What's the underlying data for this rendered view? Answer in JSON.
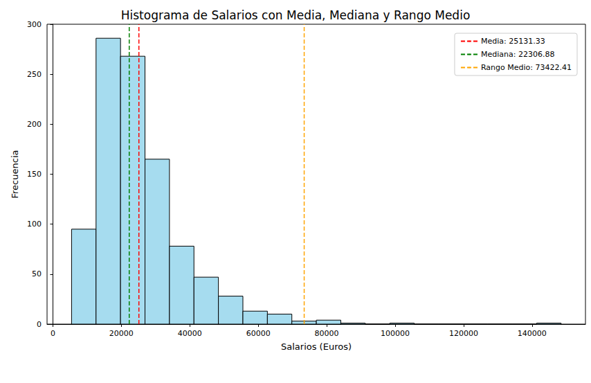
{
  "chart_data": {
    "type": "histogram",
    "title": "Histograma de Salarios con Media, Mediana y Rango Medio",
    "x_label": "Salarios (Euros)",
    "y_label": "Frecuencia",
    "bins": [
      5460,
      12611,
      19762,
      26913,
      34064,
      41215,
      48366,
      55517,
      62668,
      69819,
      76970,
      84121,
      91272,
      98423,
      105574,
      112725,
      119876,
      127027,
      134178,
      141329,
      148480
    ],
    "counts": [
      95,
      286,
      268,
      165,
      78,
      47,
      28,
      13,
      10,
      3,
      4,
      1,
      0,
      1,
      0,
      0,
      0,
      0,
      0,
      1
    ],
    "color": "#a6dcef",
    "lines": [
      {
        "name": "Media: 25131.33",
        "value": 25131.33,
        "color": "#ff0000",
        "line_style": "dashed"
      },
      {
        "name": "Mediana: 22306.88",
        "value": 22306.88,
        "color": "#008000",
        "line_style": "dashed"
      },
      {
        "name": "Rango Medio: 73422.41",
        "value": 73422.41,
        "color": "#ffa500",
        "line_style": "dashed"
      }
    ],
    "xlim": [
      -1700,
      155600
    ],
    "xticks": [
      0,
      20000,
      40000,
      60000,
      80000,
      100000,
      120000,
      140000
    ],
    "ylim": [
      0,
      300
    ],
    "yticks": [
      0,
      50,
      100,
      150,
      200,
      250,
      300
    ],
    "grid": false,
    "legend": "upper right"
  }
}
